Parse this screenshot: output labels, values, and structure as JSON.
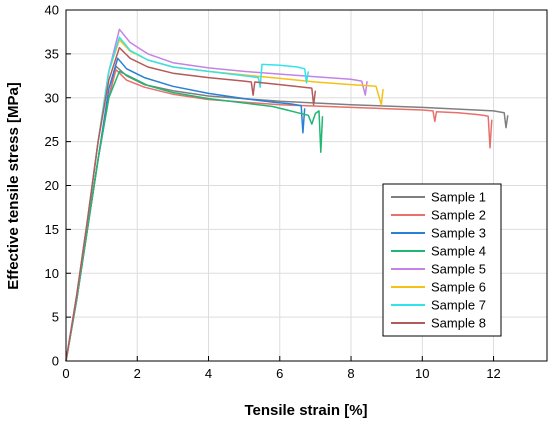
{
  "chart_data": {
    "type": "line",
    "title": "",
    "xlabel": "Tensile strain [%]",
    "ylabel": "Effective tensile stress [MPa]",
    "xlim": [
      0,
      13.5
    ],
    "ylim": [
      0,
      40
    ],
    "xticks": [
      0,
      2,
      4,
      6,
      8,
      10,
      12
    ],
    "yticks": [
      0,
      5,
      10,
      15,
      20,
      25,
      30,
      35,
      40
    ],
    "grid": true,
    "legend_position": "bottom-right",
    "series": [
      {
        "name": "Sample 1",
        "color": "#7f7f7f",
        "x": [
          0,
          0.3,
          0.6,
          0.9,
          1.2,
          1.4,
          1.7,
          2.2,
          3,
          4,
          6,
          8,
          10,
          12,
          12.3,
          12.35,
          12.4
        ],
        "y": [
          0,
          7,
          15,
          23,
          30,
          33.6,
          32.5,
          31.5,
          30.8,
          30.2,
          29.6,
          29.2,
          28.9,
          28.5,
          28.3,
          26.6,
          28.0
        ]
      },
      {
        "name": "Sample 2",
        "color": "#e8706a",
        "x": [
          0,
          0.3,
          0.6,
          0.9,
          1.2,
          1.4,
          1.7,
          2.2,
          3,
          4,
          6,
          8,
          10,
          10.3,
          10.35,
          10.4,
          11,
          11.5,
          11.7,
          11.85,
          11.9,
          11.95
        ],
        "y": [
          0,
          7,
          15,
          23,
          30,
          33.2,
          32.0,
          31.2,
          30.4,
          29.8,
          29.2,
          28.9,
          28.6,
          28.5,
          27.3,
          28.4,
          28.3,
          28.1,
          28.0,
          27.9,
          24.3,
          27.5
        ]
      },
      {
        "name": "Sample 3",
        "color": "#2a7fd6",
        "x": [
          0,
          0.3,
          0.6,
          0.9,
          1.2,
          1.45,
          1.7,
          2.2,
          3,
          4,
          5,
          5.8,
          6.3,
          6.6,
          6.65,
          6.7
        ],
        "y": [
          0,
          7,
          15,
          23,
          31,
          34.5,
          33.3,
          32.3,
          31.3,
          30.5,
          29.9,
          29.5,
          29.3,
          29.1,
          26.0,
          28.8
        ]
      },
      {
        "name": "Sample 4",
        "color": "#22b573",
        "x": [
          0,
          0.3,
          0.6,
          0.9,
          1.2,
          1.5,
          1.8,
          2.3,
          3,
          4,
          5,
          5.8,
          6.2,
          6.5,
          6.8,
          6.9,
          7.0,
          7.1,
          7.15,
          7.2
        ],
        "y": [
          0,
          7,
          15,
          23,
          30,
          33.0,
          32.4,
          31.4,
          30.6,
          29.9,
          29.4,
          29.0,
          28.6,
          28.3,
          28.0,
          27.0,
          28.2,
          28.5,
          23.8,
          27.9
        ]
      },
      {
        "name": "Sample 5",
        "color": "#c383e6",
        "x": [
          0,
          0.3,
          0.6,
          0.9,
          1.2,
          1.5,
          1.8,
          2.3,
          3,
          4,
          5,
          6,
          7,
          8,
          8.3,
          8.4,
          8.45
        ],
        "y": [
          0,
          7.5,
          16,
          25,
          33,
          37.8,
          36.3,
          35.0,
          34.0,
          33.4,
          33.0,
          32.7,
          32.4,
          32.1,
          31.9,
          30.3,
          31.9
        ]
      },
      {
        "name": "Sample 6",
        "color": "#f5c117",
        "x": [
          0,
          0.3,
          0.6,
          0.9,
          1.2,
          1.5,
          1.8,
          2.3,
          3,
          4,
          5,
          6,
          7,
          8,
          8.7,
          8.85,
          8.9
        ],
        "y": [
          0,
          7.5,
          16,
          25,
          33,
          36.6,
          35.3,
          34.3,
          33.5,
          33.0,
          32.6,
          32.2,
          31.8,
          31.5,
          31.3,
          29.2,
          31.0
        ]
      },
      {
        "name": "Sample 7",
        "color": "#33e3ec",
        "x": [
          0,
          0.3,
          0.6,
          0.9,
          1.2,
          1.5,
          1.8,
          2.3,
          3,
          4,
          5,
          5.4,
          5.45,
          5.5,
          6,
          6.5,
          6.7,
          6.75,
          6.8
        ],
        "y": [
          0,
          7.5,
          16,
          25,
          33,
          36.9,
          35.4,
          34.3,
          33.5,
          33.0,
          32.5,
          32.3,
          31.2,
          33.8,
          33.7,
          33.5,
          33.3,
          31.7,
          33.0
        ]
      },
      {
        "name": "Sample 8",
        "color": "#b55a5a",
        "x": [
          0,
          0.3,
          0.6,
          0.9,
          1.2,
          1.5,
          1.8,
          2.3,
          3,
          4,
          5,
          5.2,
          5.25,
          5.3,
          6,
          6.9,
          6.95,
          7.0
        ],
        "y": [
          0,
          7.5,
          16,
          25,
          32,
          35.7,
          34.5,
          33.5,
          32.8,
          32.3,
          31.9,
          31.8,
          30.3,
          31.8,
          31.5,
          31.1,
          29.2,
          30.8
        ]
      }
    ]
  }
}
